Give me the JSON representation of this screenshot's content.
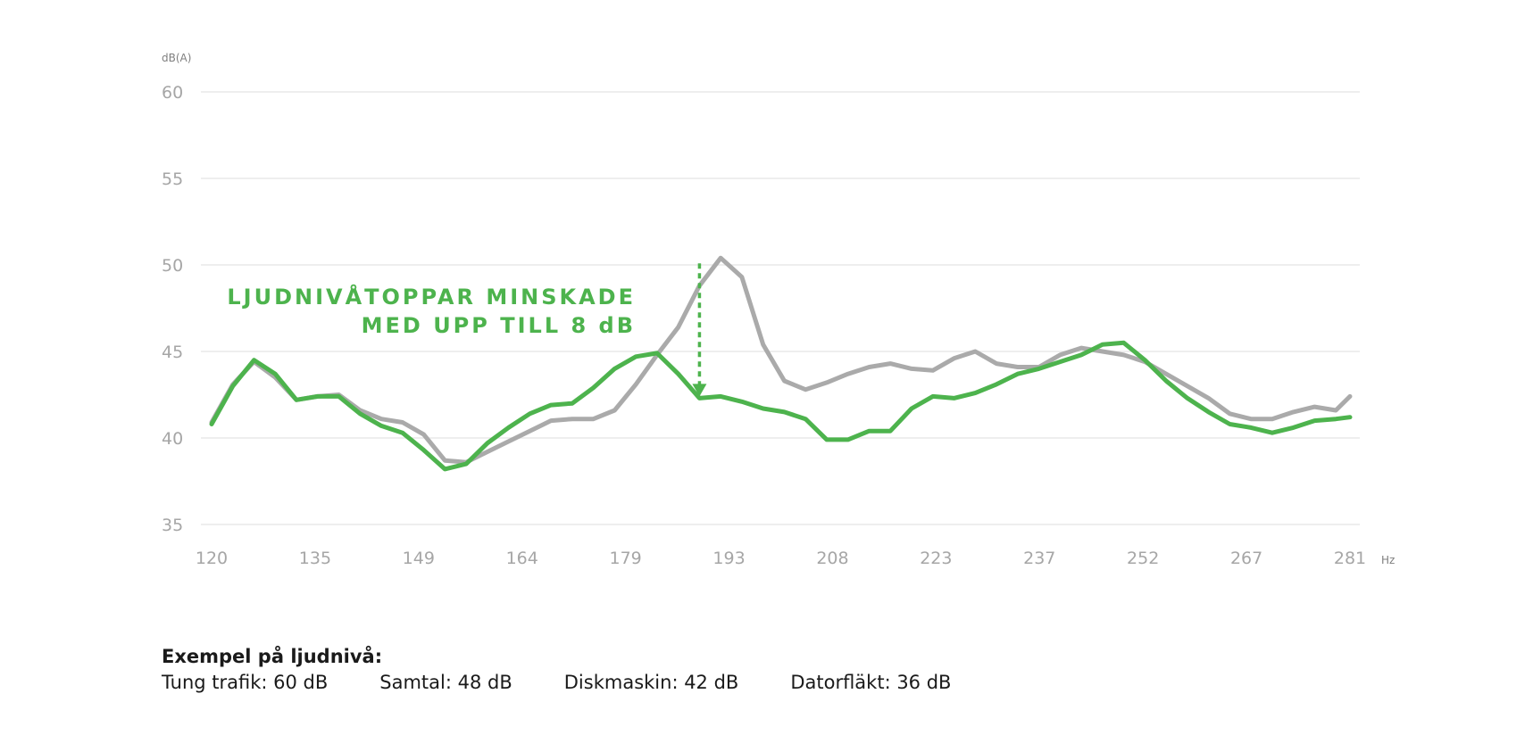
{
  "chart_data": {
    "type": "line",
    "ylabel": "dB(A)",
    "xlabel": "Hz",
    "ylim": [
      35,
      60
    ],
    "yticks": [
      35,
      40,
      45,
      50,
      55,
      60
    ],
    "xlim": [
      120,
      281
    ],
    "xticks": [
      120,
      135,
      149,
      164,
      179,
      193,
      208,
      223,
      237,
      252,
      267,
      281
    ],
    "grid": true,
    "series": [
      {
        "color": "#aaaaaa",
        "x": [
          120,
          123,
          126,
          129,
          132,
          135,
          138,
          141,
          144,
          147,
          150,
          153,
          156,
          159,
          162,
          165,
          168,
          171,
          174,
          177,
          180,
          183,
          186,
          189,
          192,
          195,
          198,
          201,
          204,
          207,
          210,
          213,
          216,
          219,
          222,
          225,
          228,
          231,
          234,
          237,
          240,
          243,
          246,
          249,
          252,
          255,
          258,
          261,
          264,
          267,
          270,
          273,
          276,
          279,
          281
        ],
        "values": [
          40.9,
          43.1,
          44.4,
          43.5,
          42.2,
          42.4,
          42.5,
          41.6,
          41.1,
          40.9,
          40.2,
          38.7,
          38.6,
          39.2,
          39.8,
          40.4,
          41.0,
          41.1,
          41.1,
          41.6,
          43.1,
          44.8,
          46.4,
          48.8,
          50.4,
          49.3,
          45.4,
          43.3,
          42.8,
          43.2,
          43.7,
          44.1,
          44.3,
          44.0,
          43.9,
          44.6,
          45.0,
          44.3,
          44.1,
          44.1,
          44.8,
          45.2,
          45.0,
          44.8,
          44.4,
          43.7,
          43.0,
          42.3,
          41.4,
          41.1,
          41.1,
          41.5,
          41.8,
          41.6,
          42.4
        ]
      },
      {
        "color": "#4db34d",
        "x": [
          120,
          123,
          126,
          129,
          132,
          135,
          138,
          141,
          144,
          147,
          150,
          153,
          156,
          159,
          162,
          165,
          168,
          171,
          174,
          177,
          180,
          183,
          186,
          189,
          192,
          195,
          198,
          201,
          204,
          207,
          210,
          213,
          216,
          219,
          222,
          225,
          228,
          231,
          234,
          237,
          240,
          243,
          246,
          249,
          252,
          255,
          258,
          261,
          264,
          267,
          270,
          273,
          276,
          279,
          281
        ],
        "values": [
          40.8,
          43.0,
          44.5,
          43.7,
          42.2,
          42.4,
          42.4,
          41.4,
          40.7,
          40.3,
          39.3,
          38.2,
          38.5,
          39.7,
          40.6,
          41.4,
          41.9,
          42.0,
          42.9,
          44.0,
          44.7,
          44.9,
          43.7,
          42.3,
          42.4,
          42.1,
          41.7,
          41.5,
          41.1,
          39.9,
          39.9,
          40.4,
          40.4,
          41.7,
          42.4,
          42.3,
          42.6,
          43.1,
          43.7,
          44.0,
          44.4,
          44.8,
          45.4,
          45.5,
          44.5,
          43.3,
          42.3,
          41.5,
          40.8,
          40.6,
          40.3,
          40.6,
          41.0,
          41.1,
          41.2
        ]
      }
    ],
    "annotation": {
      "lines": [
        "LJUDNIVÅTOPPAR MINSKADE",
        "MED UPP TILL 8 dB"
      ],
      "arrow": {
        "x": 189,
        "from": 50.4,
        "to": 42.3
      }
    }
  },
  "examples": {
    "heading": "Exempel på ljudnivå:",
    "items": [
      "Tung trafik: 60 dB",
      "Samtal: 48 dB",
      "Diskmaskin: 42 dB",
      "Datorfläkt: 36 dB"
    ]
  }
}
